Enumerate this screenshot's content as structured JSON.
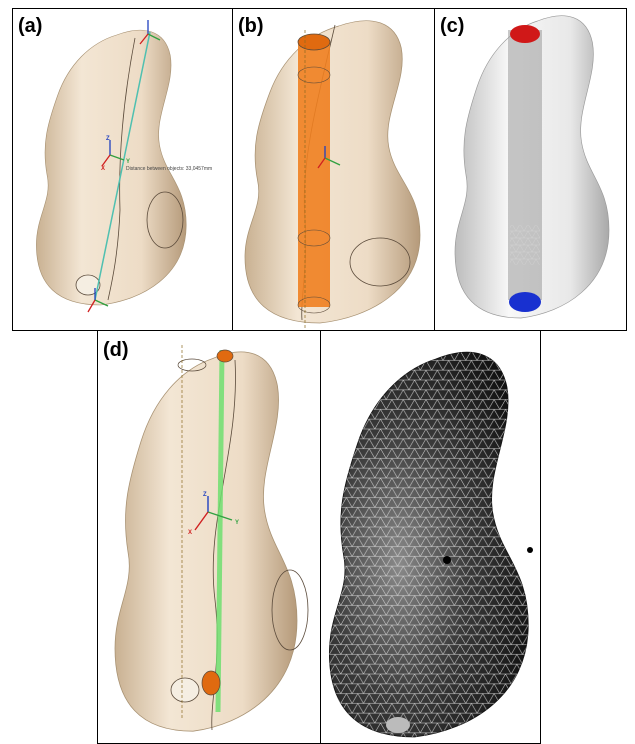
{
  "panels": [
    {
      "label": "(a)"
    },
    {
      "label": "(b)"
    },
    {
      "label": "(c)"
    },
    {
      "label": "(d)"
    }
  ],
  "annotation": "Distance between objects: 33,0457mm",
  "triad_labels": [
    "X",
    "Y",
    "Z"
  ]
}
